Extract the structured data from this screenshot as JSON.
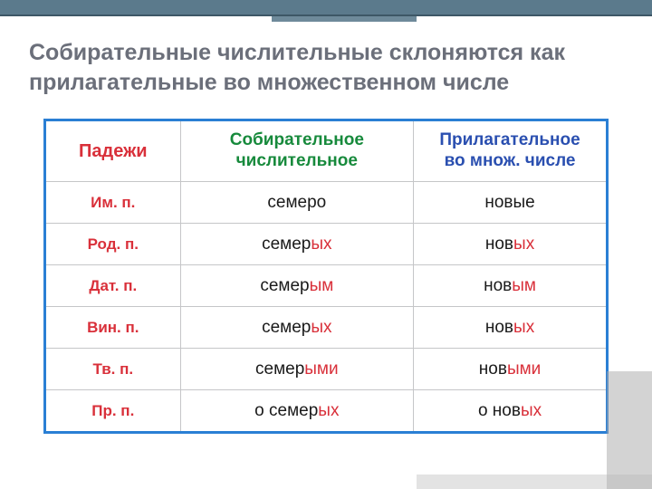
{
  "title": "Собирательные числительные склоняются как прилагательные во множественном числе",
  "columns": {
    "col1": "Падежи",
    "col2": "Собирательное\nчислительное",
    "col3": "Прилагательное\nво множ. числе"
  },
  "rows": [
    {
      "case": "Им. п.",
      "num_stem": "семеро",
      "num_end": "",
      "adj_stem": "новые",
      "adj_end": ""
    },
    {
      "case": "Род. п.",
      "num_stem": "семер",
      "num_end": "ых",
      "adj_stem": "нов",
      "adj_end": "ых"
    },
    {
      "case": "Дат. п.",
      "num_stem": "семер",
      "num_end": "ым",
      "adj_stem": "нов",
      "adj_end": "ым"
    },
    {
      "case": "Вин. п.",
      "num_stem": "семер",
      "num_end": "ых",
      "adj_stem": "нов",
      "adj_end": "ых"
    },
    {
      "case": "Тв. п.",
      "num_stem": "семер",
      "num_end": "ыми",
      "adj_stem": "нов",
      "adj_end": "ыми"
    },
    {
      "case": "Пр. п.",
      "num_stem": "о семер",
      "num_end": "ых",
      "adj_stem": "о нов",
      "adj_end": "ых"
    }
  ],
  "colors": {
    "border": "#2a7fd4",
    "case_color": "#d9303a",
    "ending_color": "#d9303a",
    "header_col2": "#178a3c",
    "header_col3": "#2a4fb0",
    "title_color": "#6b6f7a",
    "topbar": "#5b7a8c"
  }
}
